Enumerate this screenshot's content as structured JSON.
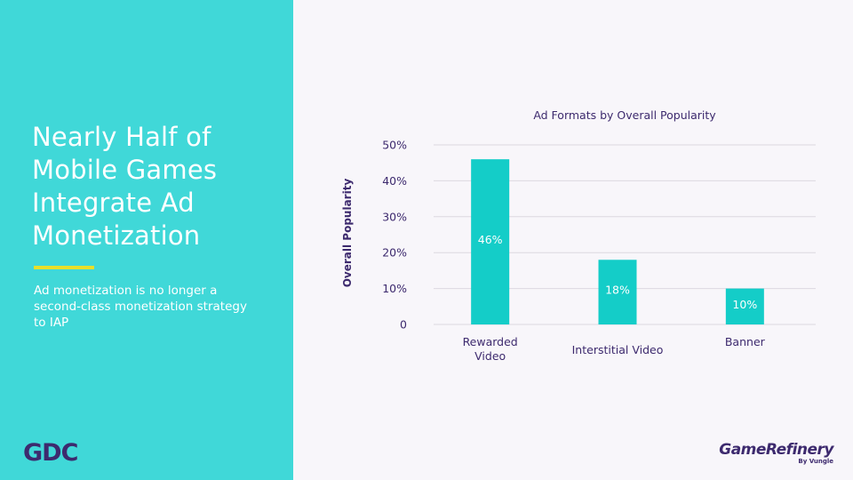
{
  "slide": {
    "headline": "Nearly Half of Mobile Games Integrate Ad Monetization",
    "subtitle": "Ad monetization is no longer a second-class monetization strategy to IAP",
    "logo_left": "GDC",
    "logo_right": "GameRefinery",
    "logo_right_sub": "By Vungle"
  },
  "colors": {
    "panel": "#40d8d8",
    "accent": "#e8df2a",
    "bar": "#14cdc8",
    "text": "#3d2a6e"
  },
  "chart_data": {
    "type": "bar",
    "title": "Ad Formats by Overall Popularity",
    "ylabel": "Overall Popularity",
    "xlabel": "",
    "categories": [
      "Rewarded Video",
      "Interstitial Video",
      "Banner"
    ],
    "values": [
      46,
      18,
      10
    ],
    "data_labels": [
      "46%",
      "18%",
      "10%"
    ],
    "ylim": [
      0,
      50
    ],
    "yticks": [
      0,
      10,
      20,
      30,
      40,
      50
    ],
    "ytick_labels": [
      "0",
      "10%",
      "20%",
      "30%",
      "40%",
      "50%"
    ],
    "grid": true,
    "legend": "none"
  }
}
